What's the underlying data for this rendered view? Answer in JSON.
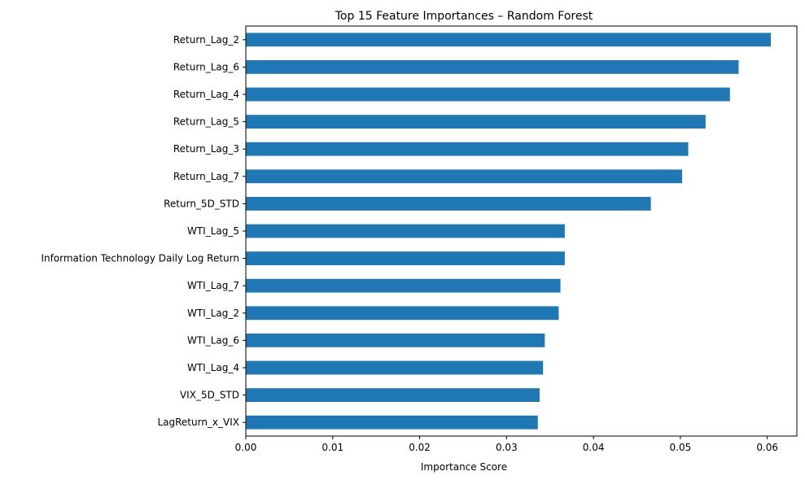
{
  "chart_data": {
    "type": "bar",
    "orientation": "horizontal",
    "title": "Top 15 Feature Importances – Random Forest",
    "xlabel": "Importance Score",
    "ylabel": "",
    "xlim": [
      0,
      0.0634
    ],
    "xticks": [
      "0.00",
      "0.01",
      "0.02",
      "0.03",
      "0.04",
      "0.05",
      "0.06"
    ],
    "grid": false,
    "legend": "none",
    "bar_color": "#1f77b4",
    "categories": [
      "Return_Lag_2",
      "Return_Lag_6",
      "Return_Lag_4",
      "Return_Lag_5",
      "Return_Lag_3",
      "Return_Lag_7",
      "Return_5D_STD",
      "WTI_Lag_5",
      "Information Technology Daily Log Return",
      "WTI_Lag_7",
      "WTI_Lag_2",
      "WTI_Lag_6",
      "WTI_Lag_4",
      "VIX_5D_STD",
      "LagReturn_x_VIX"
    ],
    "values": [
      0.0604,
      0.0567,
      0.0557,
      0.0529,
      0.0509,
      0.0502,
      0.0466,
      0.0367,
      0.0367,
      0.0362,
      0.036,
      0.0344,
      0.0342,
      0.0338,
      0.0336
    ]
  }
}
